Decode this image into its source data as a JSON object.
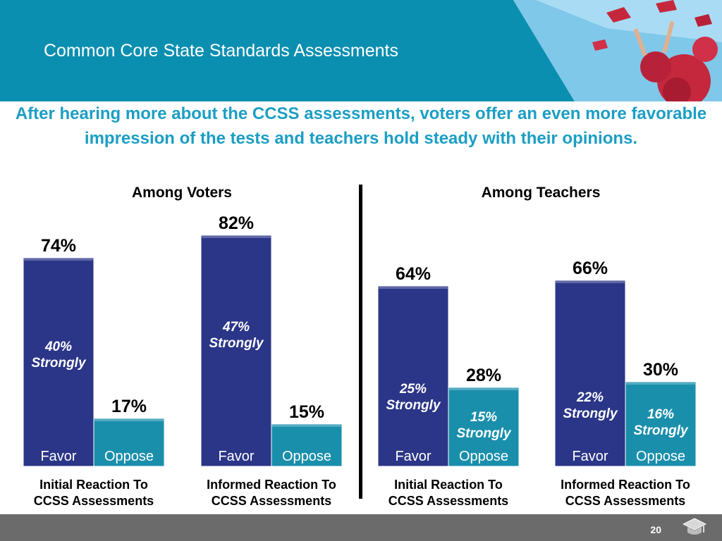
{
  "slide": {
    "title": "Common Core State Standards Assessments",
    "headline": "After hearing more about the CCSS assessments, voters offer an even more favorable impression of the tests and teachers hold steady with their opinions.",
    "page_number": "20"
  },
  "sections": {
    "voters": "Among Voters",
    "teachers": "Among Teachers"
  },
  "colors": {
    "header": "#0b8fb0",
    "favor": "#2b3688",
    "oppose": "#1a8fab",
    "headline": "#1b9ec4",
    "footer": "#6b6b6b"
  },
  "chart_data": [
    {
      "type": "bar",
      "group": "Among Voters",
      "title": "Initial Reaction To CCSS Assessments",
      "title_lines": [
        "Initial Reaction To",
        "CCSS Assessments"
      ],
      "categories": [
        "Favor",
        "Oppose"
      ],
      "values": [
        74,
        17
      ],
      "value_labels": [
        "74%",
        "17%"
      ],
      "strongly": [
        40,
        null
      ],
      "strongly_labels": [
        [
          "40%",
          "Strongly"
        ],
        null
      ]
    },
    {
      "type": "bar",
      "group": "Among Voters",
      "title": "Informed Reaction To CCSS Assessments",
      "title_lines": [
        "Informed Reaction To",
        "CCSS Assessments"
      ],
      "categories": [
        "Favor",
        "Oppose"
      ],
      "values": [
        82,
        15
      ],
      "value_labels": [
        "82%",
        "15%"
      ],
      "strongly": [
        47,
        null
      ],
      "strongly_labels": [
        [
          "47%",
          "Strongly"
        ],
        null
      ]
    },
    {
      "type": "bar",
      "group": "Among Teachers",
      "title": "Initial Reaction To CCSS Assessments",
      "title_lines": [
        "Initial Reaction To",
        "CCSS Assessments"
      ],
      "categories": [
        "Favor",
        "Oppose"
      ],
      "values": [
        64,
        28
      ],
      "value_labels": [
        "64%",
        "28%"
      ],
      "strongly": [
        25,
        15
      ],
      "strongly_labels": [
        [
          "25%",
          "Strongly"
        ],
        [
          "15%",
          "Strongly"
        ]
      ]
    },
    {
      "type": "bar",
      "group": "Among Teachers",
      "title": "Informed Reaction To CCSS Assessments",
      "title_lines": [
        "Informed Reaction To",
        "CCSS Assessments"
      ],
      "categories": [
        "Favor",
        "Oppose"
      ],
      "values": [
        66,
        30
      ],
      "value_labels": [
        "66%",
        "30%"
      ],
      "strongly": [
        22,
        16
      ],
      "strongly_labels": [
        [
          "22%",
          "Strongly"
        ],
        [
          "16%",
          "Strongly"
        ]
      ]
    }
  ]
}
